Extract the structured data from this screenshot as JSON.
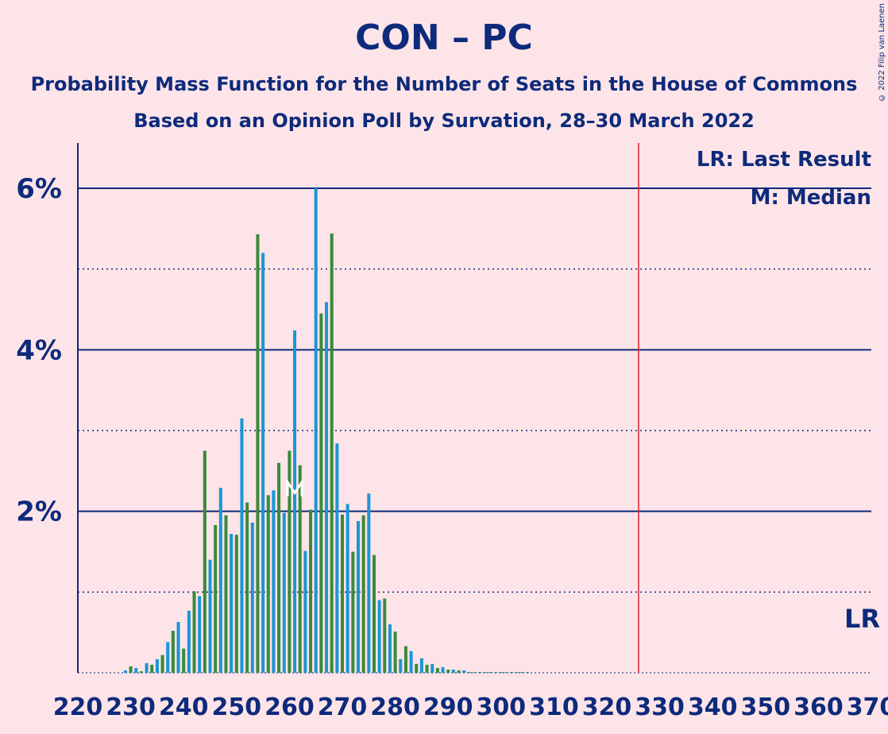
{
  "title": "CON – PC",
  "subtitle": "Probability Mass Function for the Number of Seats in the House of Commons",
  "subtitle2": "Based on an Opinion Poll by Survation, 28–30 March 2022",
  "copyright": "© 2022 Filip van Laenen",
  "legend": {
    "lr": "LR: Last Result",
    "m": "M: Median",
    "lr_short": "LR"
  },
  "colors": {
    "background": "#fde4e8",
    "text": "#0e2a7b",
    "blue": "#1a96d6",
    "green": "#3a8a3a",
    "last_result_line": "#e0202a"
  },
  "chart_data": {
    "type": "bar",
    "xlim": [
      220,
      370
    ],
    "ylim": [
      0,
      0.065
    ],
    "x_ticks": [
      220,
      230,
      240,
      250,
      260,
      270,
      280,
      290,
      300,
      310,
      320,
      330,
      340,
      350,
      360,
      370
    ],
    "y_ticks": [
      {
        "value": 0.02,
        "label": "2%"
      },
      {
        "value": 0.04,
        "label": "4%"
      },
      {
        "value": 0.06,
        "label": "6%"
      }
    ],
    "minor_gridlines": [
      0.01,
      0.03,
      0.05
    ],
    "median": 261,
    "last_result": 326,
    "seats": [
      229,
      230,
      231,
      232,
      233,
      234,
      235,
      236,
      237,
      238,
      239,
      240,
      241,
      242,
      243,
      244,
      245,
      246,
      247,
      248,
      249,
      250,
      251,
      252,
      253,
      254,
      255,
      256,
      257,
      258,
      259,
      260,
      261,
      262,
      263,
      264,
      265,
      266,
      267,
      268,
      269,
      270,
      271,
      272,
      273,
      274,
      275,
      276,
      277,
      278,
      279,
      280,
      281,
      282,
      283,
      284,
      285,
      286,
      287,
      288,
      289,
      290,
      291,
      292,
      293,
      294,
      295,
      296,
      297,
      298,
      299,
      300,
      301,
      302,
      303,
      304,
      305
    ],
    "probabilities": [
      0.0003,
      0.0008,
      0.0006,
      0.0002,
      0.0012,
      0.001,
      0.0017,
      0.0022,
      0.0038,
      0.0052,
      0.0063,
      0.003,
      0.0077,
      0.0101,
      0.0095,
      0.0275,
      0.014,
      0.0183,
      0.0229,
      0.0195,
      0.0172,
      0.0171,
      0.0315,
      0.0211,
      0.0186,
      0.0543,
      0.052,
      0.022,
      0.0226,
      0.026,
      0.0198,
      0.0275,
      0.0424,
      0.0257,
      0.0151,
      0.0202,
      0.06,
      0.0445,
      0.0459,
      0.0544,
      0.0284,
      0.0196,
      0.0209,
      0.015,
      0.0188,
      0.0195,
      0.0222,
      0.0146,
      0.009,
      0.0092,
      0.006,
      0.0051,
      0.0017,
      0.0033,
      0.0027,
      0.0011,
      0.0018,
      0.001,
      0.0011,
      0.0006,
      0.0007,
      0.0004,
      0.0004,
      0.0003,
      0.0003,
      0.0001,
      0.0001,
      0.0001,
      0.0001,
      0.0001,
      0.0001,
      0.0001,
      0.0001,
      0.0001,
      0.0001,
      0.0001,
      0.0001
    ]
  }
}
